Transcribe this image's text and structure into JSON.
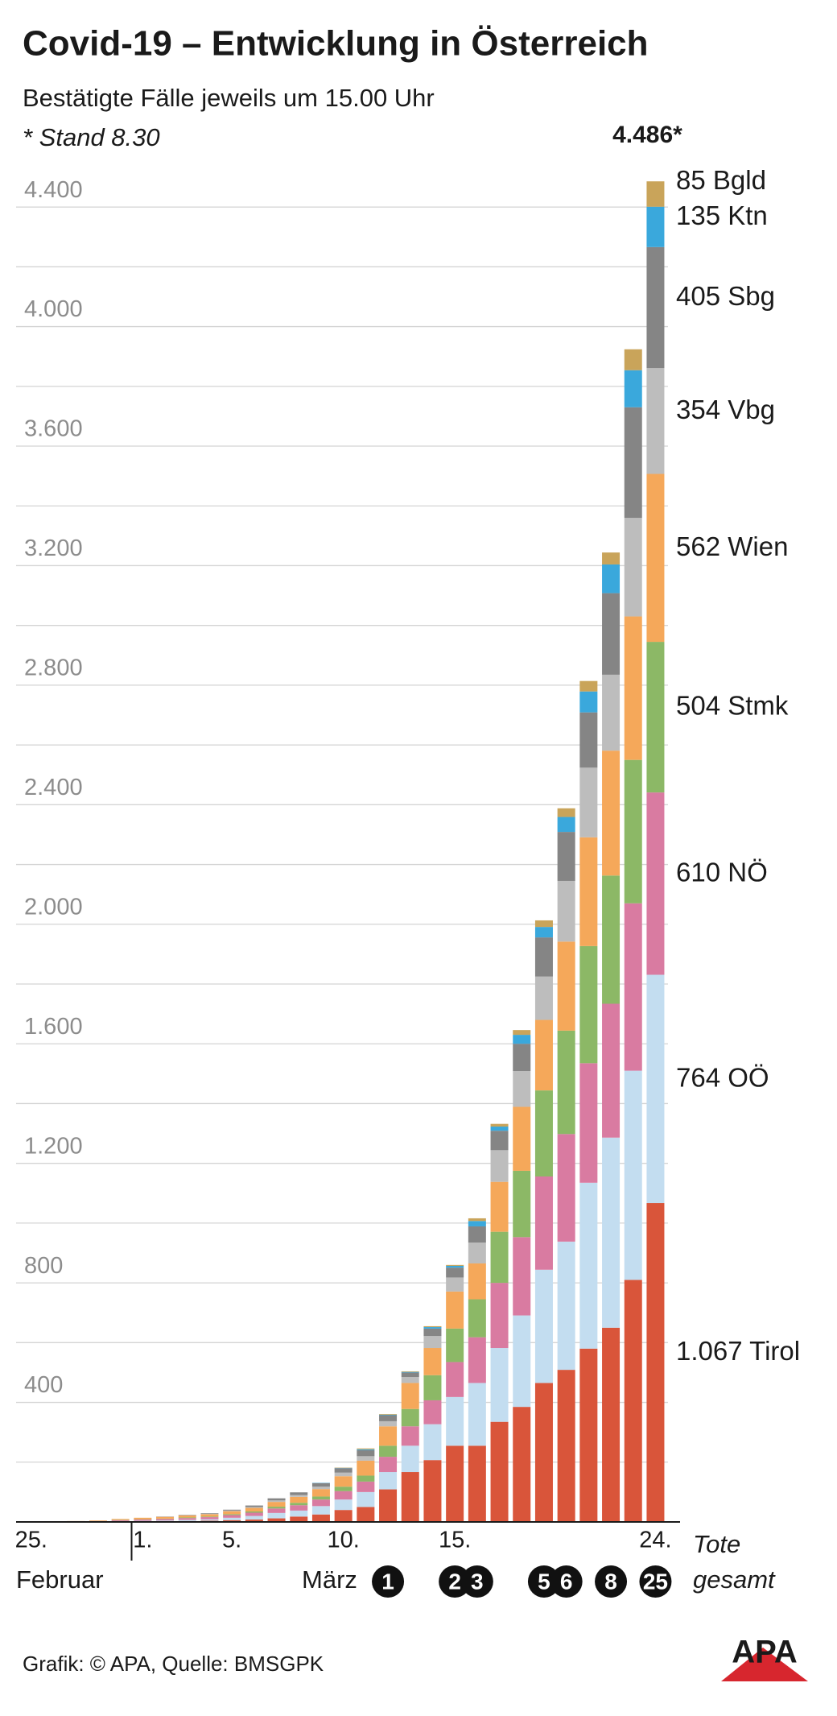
{
  "chart_data": {
    "type": "stacked_bar",
    "title": "Covid-19 – Entwicklung in Österreich",
    "subtitle": "Bestätigte Fälle jeweils um 15.00 Uhr",
    "note": "* Stand 8.30",
    "total_label": "4.486*",
    "categories": [
      "25.",
      null,
      null,
      null,
      null,
      "1.",
      null,
      null,
      null,
      "5.",
      null,
      null,
      null,
      null,
      "10.",
      null,
      null,
      null,
      null,
      "15.",
      null,
      null,
      null,
      null,
      null,
      null,
      null,
      null,
      "24."
    ],
    "month_labels": [
      "Februar",
      "März"
    ],
    "series": [
      {
        "name": "Tirol",
        "color": "#d9553a",
        "values": [
          2,
          2,
          2,
          2,
          2,
          2,
          2,
          3,
          4,
          6,
          8,
          12,
          18,
          25,
          40,
          50,
          109,
          167,
          207,
          255,
          255,
          335,
          385,
          465,
          509,
          580,
          650,
          810,
          1067
        ],
        "value_labels": [
          null,
          null,
          null,
          null,
          null,
          null,
          null,
          null,
          null,
          null,
          null,
          null,
          null,
          null,
          null,
          null,
          null,
          null,
          null,
          null,
          null,
          null,
          null,
          null,
          null,
          null,
          null,
          null,
          "1.067"
        ]
      },
      {
        "name": "OÖ",
        "color": "#c3ddf0",
        "values": [
          0,
          0,
          0,
          0,
          1,
          2,
          3,
          4,
          5,
          8,
          12,
          18,
          20,
          28,
          35,
          50,
          58,
          88,
          120,
          163,
          210,
          247,
          306,
          379,
          429,
          555,
          636,
          700,
          764
        ]
      },
      {
        "name": "NÖ",
        "color": "#d97ba1",
        "values": [
          0,
          0,
          0,
          1,
          3,
          4,
          5,
          6,
          7,
          9,
          11,
          15,
          18,
          22,
          28,
          35,
          51,
          65,
          80,
          117,
          153,
          218,
          262,
          312,
          360,
          400,
          448,
          560,
          610
        ]
      },
      {
        "name": "Stmk",
        "color": "#8cb866",
        "values": [
          0,
          0,
          0,
          0,
          1,
          1,
          1,
          2,
          2,
          3,
          4,
          6,
          8,
          10,
          15,
          20,
          37,
          58,
          84,
          112,
          127,
          171,
          222,
          288,
          346,
          392,
          429,
          480,
          504
        ]
      },
      {
        "name": "Wien",
        "color": "#f5a85a",
        "values": [
          0,
          0,
          1,
          2,
          3,
          5,
          6,
          7,
          8,
          10,
          12,
          16,
          20,
          25,
          35,
          50,
          65,
          87,
          91,
          124,
          120,
          167,
          214,
          236,
          298,
          364,
          418,
          480,
          562
        ]
      },
      {
        "name": "Vbg",
        "color": "#bdbdbd",
        "values": [
          0,
          0,
          0,
          0,
          0,
          0,
          0,
          1,
          1,
          2,
          3,
          5,
          6,
          8,
          12,
          15,
          17,
          20,
          40,
          47,
          70,
          106,
          120,
          145,
          203,
          233,
          254,
          330,
          354
        ]
      },
      {
        "name": "Sbg",
        "color": "#858585",
        "values": [
          0,
          0,
          0,
          0,
          0,
          0,
          1,
          1,
          2,
          3,
          5,
          7,
          9,
          12,
          15,
          20,
          20,
          15,
          25,
          33,
          54,
          65,
          91,
          131,
          164,
          185,
          273,
          370,
          405
        ]
      },
      {
        "name": "Ktn",
        "color": "#3aa8dc",
        "values": [
          0,
          0,
          0,
          0,
          0,
          0,
          0,
          0,
          0,
          0,
          0,
          0,
          0,
          1,
          1,
          3,
          2,
          2,
          5,
          6,
          18,
          14,
          30,
          35,
          50,
          70,
          96,
          124,
          135
        ]
      },
      {
        "name": "Bgld",
        "color": "#c9a45a",
        "values": [
          0,
          0,
          0,
          0,
          0,
          0,
          0,
          0,
          0,
          0,
          0,
          0,
          0,
          0,
          1,
          3,
          2,
          2,
          3,
          3,
          9,
          9,
          16,
          22,
          29,
          35,
          40,
          70,
          85
        ]
      }
    ],
    "deaths": {
      "label": [
        "Tote",
        "gesamt"
      ],
      "values": [
        null,
        null,
        null,
        null,
        null,
        null,
        null,
        null,
        null,
        null,
        null,
        null,
        null,
        null,
        null,
        null,
        1,
        null,
        null,
        2,
        3,
        null,
        null,
        5,
        6,
        null,
        8,
        null,
        25
      ]
    },
    "ylim": [
      0,
      4500
    ],
    "yticks": [
      400,
      800,
      {
        "value": 1200,
        "label": "1.200"
      },
      {
        "value": 1600,
        "label": "1.600"
      },
      {
        "value": 2000,
        "label": "2.000"
      },
      {
        "value": 2400,
        "label": "2.400"
      },
      {
        "value": 2800,
        "label": "2.800"
      },
      {
        "value": 3200,
        "label": "3.200"
      },
      {
        "value": 3600,
        "label": "3.600"
      },
      {
        "value": 4000,
        "label": "4.000"
      },
      {
        "value": 4400,
        "label": "4.400"
      }
    ],
    "minor_yticks": [
      200,
      600,
      1000,
      1400,
      1800,
      2200,
      2600,
      3000,
      3400,
      3800,
      4200
    ],
    "grid": true,
    "source": "Grafik: © APA, Quelle: BMSGPK",
    "logo": "APA"
  }
}
